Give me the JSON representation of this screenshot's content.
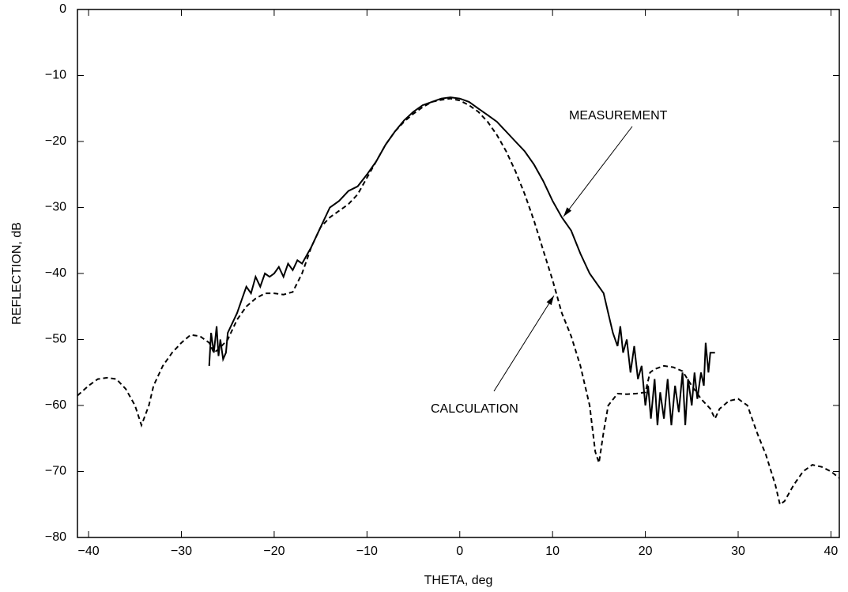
{
  "chart_data": {
    "type": "line",
    "x_label": "THETA, deg",
    "y_label": "REFLECTION, dB",
    "xlim": [
      -41.2,
      40.9
    ],
    "ylim": [
      -80,
      0
    ],
    "xticks": [
      {
        "value": -40,
        "label": "−40"
      },
      {
        "value": -30,
        "label": "−30"
      },
      {
        "value": -20,
        "label": "−20"
      },
      {
        "value": -10,
        "label": "−10"
      },
      0,
      10,
      20,
      30,
      40
    ],
    "yticks": [
      0,
      {
        "value": -10,
        "label": "−10"
      },
      {
        "value": -20,
        "label": "−20"
      },
      {
        "value": -30,
        "label": "−30"
      },
      {
        "value": -40,
        "label": "−40"
      },
      {
        "value": -50,
        "label": "−50"
      },
      {
        "value": -60,
        "label": "−60"
      },
      {
        "value": -70,
        "label": "−70"
      },
      {
        "value": -80,
        "label": "−80"
      }
    ],
    "grid": false,
    "series": [
      {
        "name": "MEASUREMENT",
        "color": "#000000",
        "style": "solid",
        "x": [
          -27,
          -26.8,
          -26.5,
          -26.2,
          -26,
          -25.8,
          -25.5,
          -25.2,
          -25,
          -24.5,
          -24,
          -23.5,
          -23,
          -22.5,
          -22,
          -21.5,
          -21,
          -20.5,
          -20,
          -19.5,
          -19,
          -18.5,
          -18,
          -17.5,
          -17,
          -16,
          -15,
          -14,
          -13,
          -12,
          -11,
          -10,
          -9,
          -8,
          -7,
          -6,
          -5,
          -4,
          -3,
          -2,
          -1,
          0,
          1,
          2,
          3,
          4,
          5,
          6,
          7,
          8,
          9,
          10,
          11,
          12,
          13,
          14,
          15,
          15.5,
          16,
          16.5,
          17,
          17.3,
          17.6,
          18,
          18.4,
          18.8,
          19.2,
          19.6,
          20,
          20.3,
          20.6,
          21,
          21.3,
          21.6,
          22,
          22.4,
          22.8,
          23.2,
          23.6,
          24,
          24.3,
          24.6,
          25,
          25.3,
          25.6,
          26,
          26.3,
          26.5,
          26.8,
          27,
          27.5
        ],
        "values": [
          -54,
          -49,
          -52,
          -48,
          -52.5,
          -50,
          -53,
          -52,
          -49,
          -47.5,
          -46,
          -44,
          -42,
          -43,
          -40.5,
          -42,
          -40,
          -40.5,
          -40,
          -39,
          -40.5,
          -38.5,
          -39.5,
          -38,
          -38.5,
          -36,
          -33,
          -30,
          -29,
          -27.5,
          -26.8,
          -25,
          -23,
          -20.5,
          -18.5,
          -16.8,
          -15.5,
          -14.5,
          -14,
          -13.5,
          -13.3,
          -13.5,
          -14,
          -15,
          -16,
          -17,
          -18.5,
          -20,
          -21.5,
          -23.5,
          -26,
          -29,
          -31.5,
          -33.5,
          -37,
          -40,
          -42,
          -43,
          -46,
          -49,
          -51,
          -48,
          -52,
          -50,
          -55,
          -51,
          -56,
          -54,
          -60,
          -57,
          -62,
          -56,
          -63,
          -58,
          -62,
          -56,
          -63,
          -57,
          -61,
          -55,
          -63,
          -56,
          -60,
          -55,
          -59,
          -55,
          -57,
          -50.5,
          -55,
          -52,
          -52
        ]
      },
      {
        "name": "CALCULATION",
        "color": "#000000",
        "style": "dashed",
        "x": [
          -41.2,
          -40,
          -39,
          -38,
          -37,
          -36,
          -35,
          -34.3,
          -33.5,
          -33,
          -32,
          -31,
          -30,
          -29,
          -28,
          -27,
          -26.5,
          -26,
          -25,
          -24,
          -23,
          -22,
          -21,
          -20,
          -19,
          -18,
          -17,
          -16,
          -15,
          -14,
          -13,
          -12,
          -11,
          -10,
          -9,
          -8,
          -7,
          -6,
          -5,
          -4,
          -3,
          -2,
          -1,
          0,
          1,
          2,
          3,
          4,
          5,
          6,
          7,
          8,
          9,
          10,
          11,
          12,
          13,
          14,
          14.6,
          15,
          15.5,
          16,
          17,
          18,
          19,
          20,
          20.5,
          21,
          22,
          23,
          24,
          25,
          26,
          27,
          27.5,
          28,
          29,
          30,
          31,
          32,
          33,
          34,
          34.5,
          35,
          36,
          37,
          38,
          39,
          40,
          40.9
        ],
        "values": [
          -58.5,
          -57,
          -56,
          -55.8,
          -56,
          -57.5,
          -60,
          -63,
          -60,
          -57,
          -54,
          -52,
          -50.5,
          -49.3,
          -49.5,
          -50.5,
          -52,
          -51.5,
          -50,
          -47,
          -45,
          -43.8,
          -43,
          -43,
          -43.2,
          -42.8,
          -40,
          -36,
          -33,
          -31.5,
          -30.5,
          -29.5,
          -28,
          -25.5,
          -23,
          -20.5,
          -18.5,
          -17,
          -15.8,
          -14.8,
          -14,
          -13.7,
          -13.5,
          -13.8,
          -14.5,
          -15.5,
          -17,
          -19,
          -21.5,
          -24.5,
          -28,
          -32,
          -36.5,
          -41,
          -46,
          -49.5,
          -54,
          -60,
          -67,
          -68.7,
          -64,
          -60,
          -58.2,
          -58.3,
          -58.2,
          -58,
          -55,
          -54.5,
          -54,
          -54.2,
          -54.8,
          -57,
          -59,
          -60.5,
          -62,
          -60.5,
          -59.3,
          -59,
          -60,
          -64,
          -67.5,
          -72,
          -75,
          -74.5,
          -72,
          -70,
          -69,
          -69.3,
          -70,
          -71
        ]
      }
    ]
  }
}
